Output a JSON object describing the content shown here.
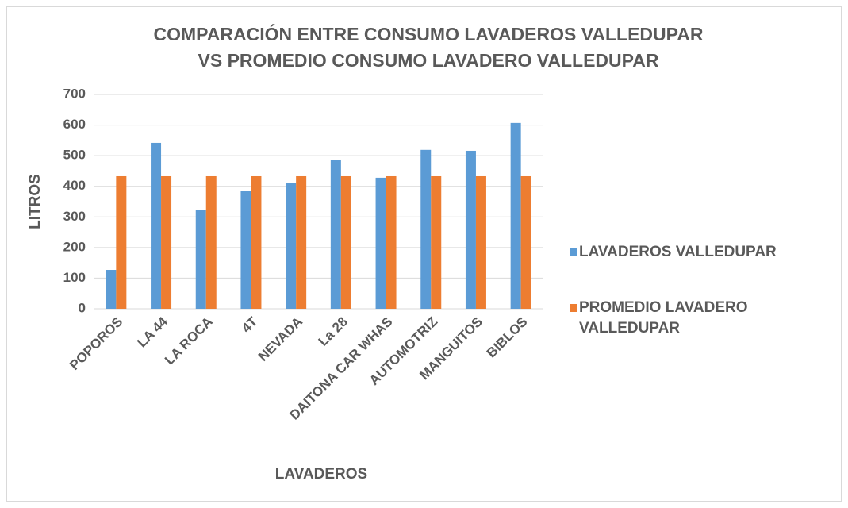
{
  "chart_data": {
    "type": "bar",
    "title": [
      "COMPARACIÓN ENTRE CONSUMO LAVADEROS VALLEDUPAR",
      "VS PROMEDIO CONSUMO LAVADERO VALLEDUPAR"
    ],
    "x_label": "LAVADEROS",
    "y_label": "LITROS",
    "categories": [
      "POPOROS",
      "LA 44",
      "LA ROCA",
      "4T",
      "NEVADA",
      "La 28",
      "DAITONA CAR WHAS",
      "AUTOMOTRIZ",
      "MANGUITOS",
      "BIBLOS"
    ],
    "series": [
      {
        "name": "LAVADEROS VALLEDUPAR",
        "color": "#5b9bd5",
        "values": [
          127,
          542,
          324,
          386,
          410,
          485,
          428,
          519,
          516,
          607
        ]
      },
      {
        "name": "PROMEDIO LAVADERO VALLEDUPAR",
        "color": "#ed7d31",
        "values": [
          433,
          433,
          433,
          433,
          433,
          433,
          433,
          433,
          433,
          433
        ]
      }
    ],
    "ylim": [
      0,
      700
    ],
    "yticks": [
      0,
      100,
      200,
      300,
      400,
      500,
      600,
      700
    ],
    "grid": true,
    "legend": "right"
  }
}
